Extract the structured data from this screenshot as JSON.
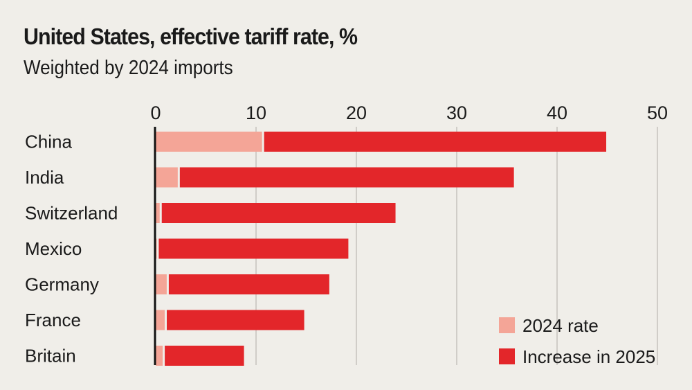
{
  "chart_data": {
    "type": "bar",
    "orientation": "horizontal",
    "stacked": true,
    "title": "United States, effective tariff rate, %",
    "subtitle": "Weighted by 2024 imports",
    "xlabel": "",
    "ylabel": "",
    "xlim": [
      0,
      50
    ],
    "xticks": [
      "0",
      "10",
      "20",
      "30",
      "40",
      "50"
    ],
    "xtick_values": [
      0,
      10,
      20,
      30,
      40,
      50
    ],
    "grid": true,
    "legend_position": "bottom-right",
    "categories": [
      "China",
      "India",
      "Switzerland",
      "Mexico",
      "Germany",
      "France",
      "Britain"
    ],
    "series": [
      {
        "name": "2024 rate",
        "color": "#f4a597",
        "values": [
          10.7,
          2.3,
          0.5,
          0.2,
          1.2,
          1.0,
          0.8
        ]
      },
      {
        "name": "Increase in 2025",
        "color": "#e3262a",
        "values": [
          34.2,
          33.4,
          23.4,
          19.0,
          16.1,
          13.8,
          8.0
        ]
      }
    ],
    "totals": [
      44.9,
      35.7,
      23.9,
      19.2,
      17.3,
      14.8,
      8.8
    ]
  }
}
